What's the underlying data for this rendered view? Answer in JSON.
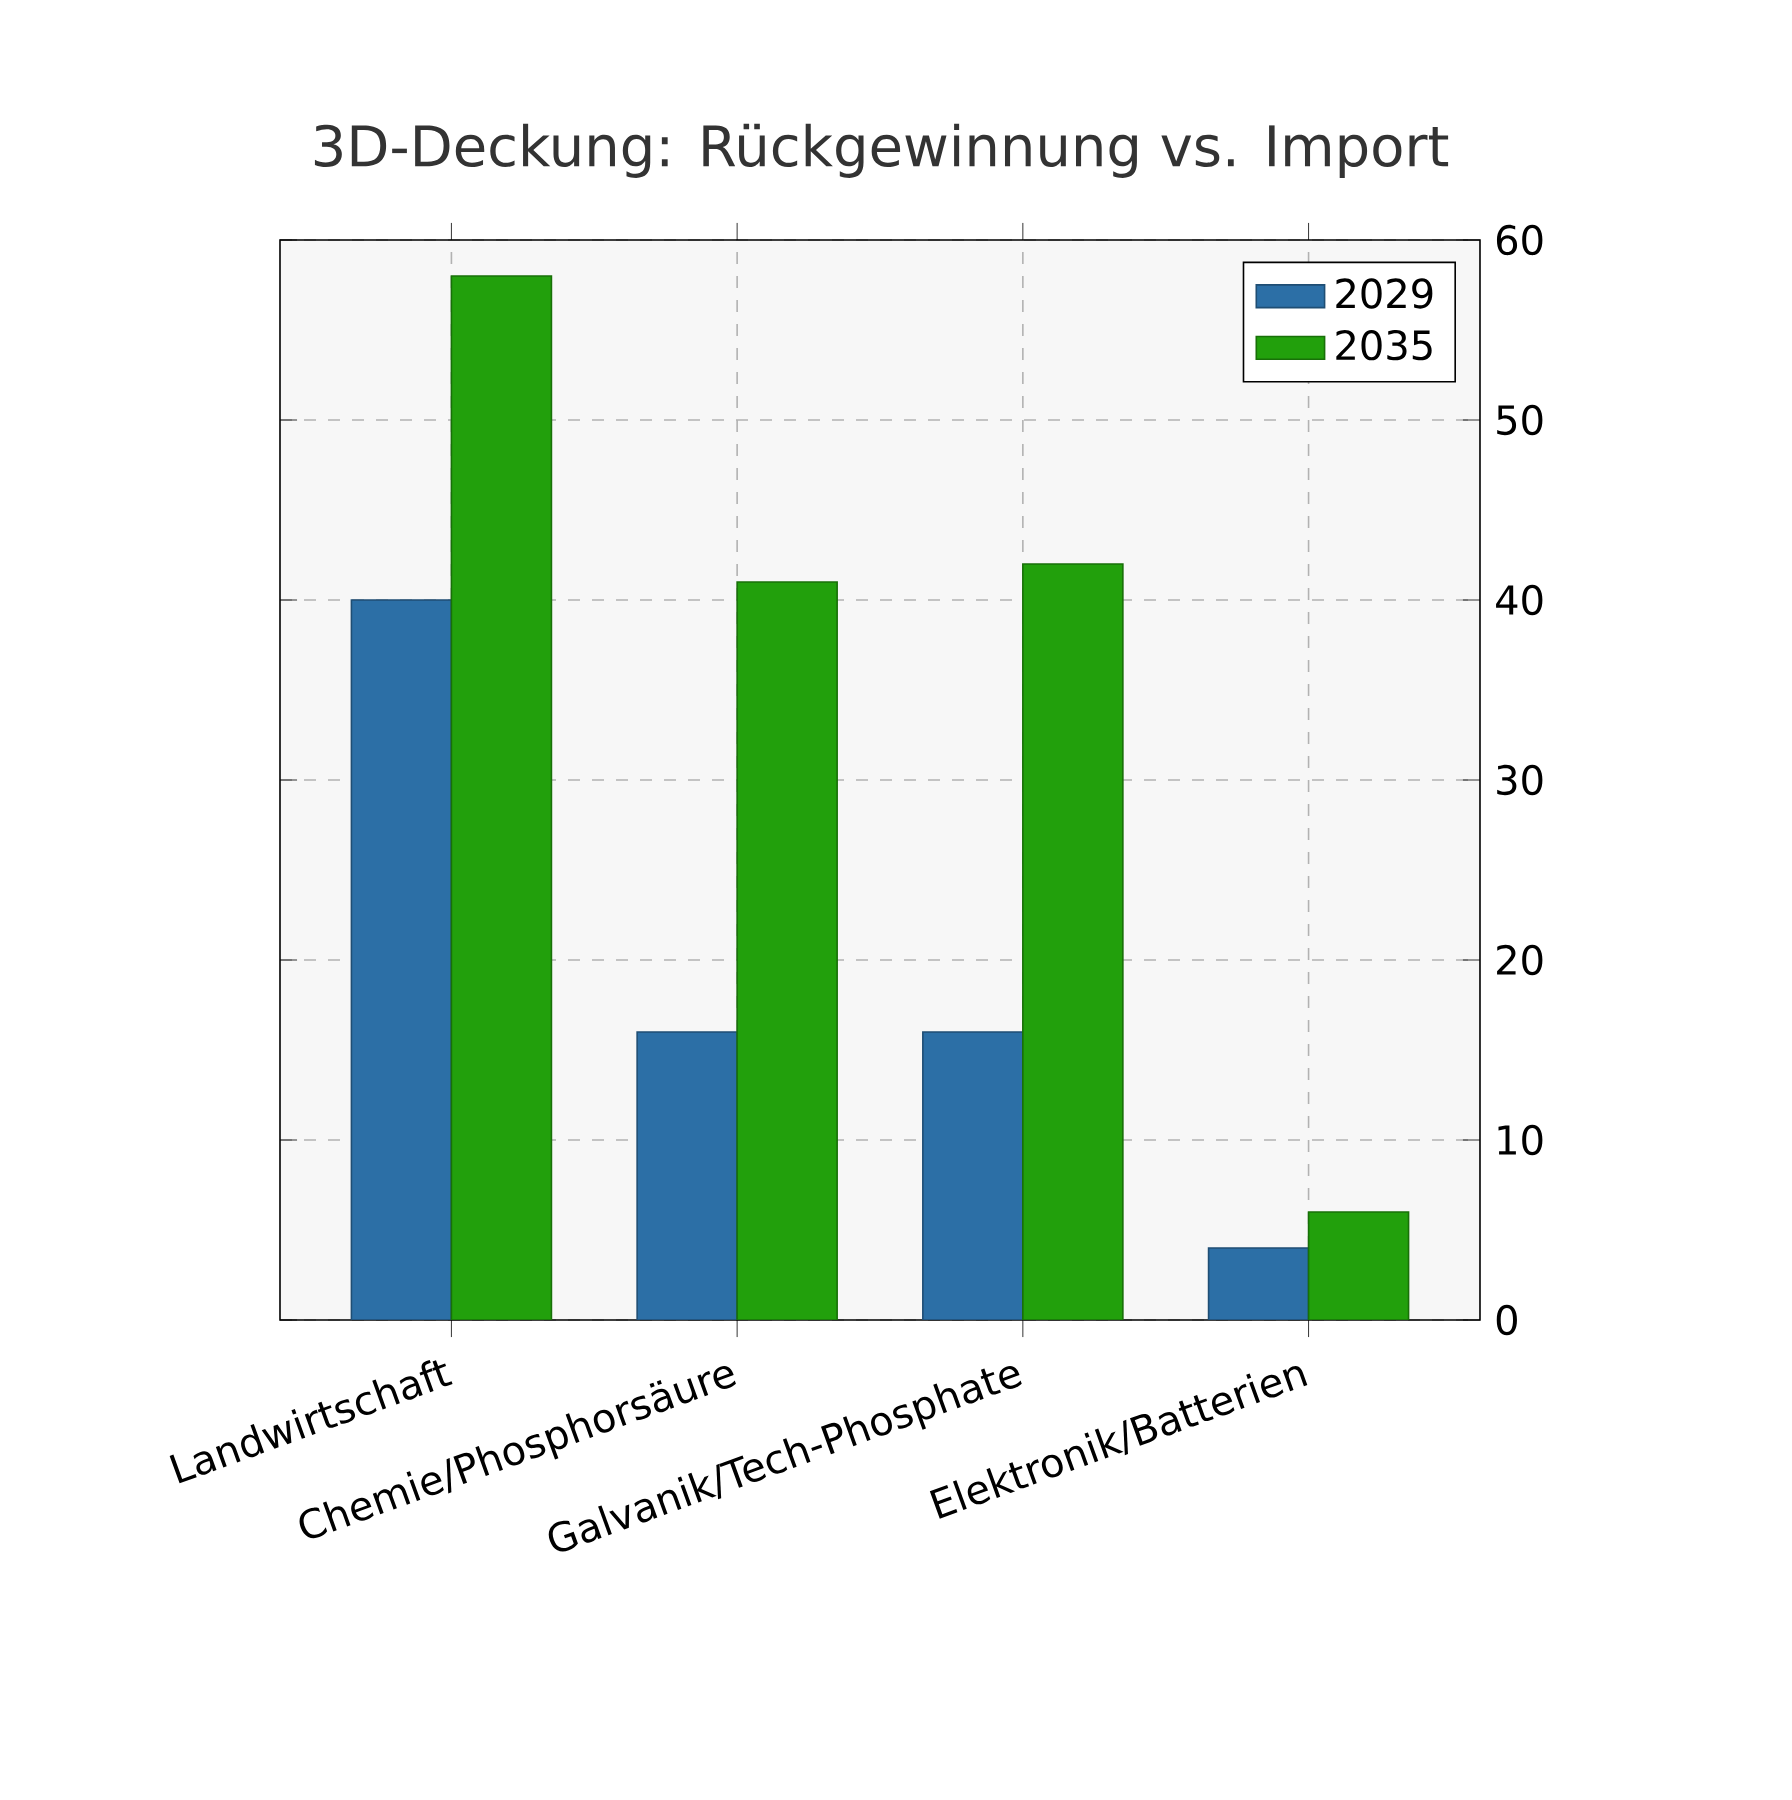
{
  "chart_data": {
    "type": "bar",
    "title": "3D-Deckung: Rückgewinnung vs. Import",
    "categories": [
      "Landwirtschaft",
      "Chemie/Phosphorsäure",
      "Galvanik/Tech-Phosphate",
      "Elektronik/Batterien"
    ],
    "series": [
      {
        "name": "2029",
        "color": "#2c6fa6",
        "values": [
          40,
          16,
          16,
          4
        ]
      },
      {
        "name": "2035",
        "color": "#22a00c",
        "values": [
          58,
          41,
          42,
          6
        ]
      }
    ],
    "ylim": [
      0,
      60
    ],
    "yticks": [
      0,
      10,
      20,
      30,
      40,
      50,
      60
    ],
    "grid": true,
    "legend": "top right"
  }
}
